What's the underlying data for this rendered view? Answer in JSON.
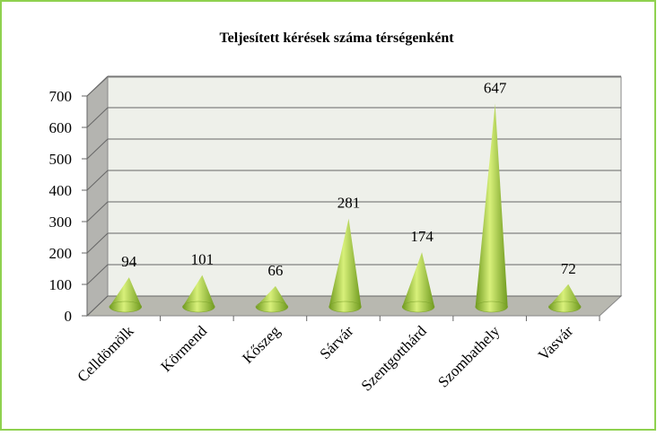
{
  "chart_data": {
    "type": "cone",
    "title": "Teljesített kérések száma térségenként",
    "categories": [
      "Celldömölk",
      "Körmend",
      "Kőszeg",
      "Sárvár",
      "Szentgotthárd",
      "Szombathely",
      "Vasvár"
    ],
    "values": [
      94,
      101,
      66,
      281,
      174,
      647,
      72
    ],
    "color": "#9cc43c",
    "ylim": [
      0,
      700
    ],
    "yticks": [
      0,
      100,
      200,
      300,
      400,
      500,
      600,
      700
    ],
    "grid": true
  }
}
